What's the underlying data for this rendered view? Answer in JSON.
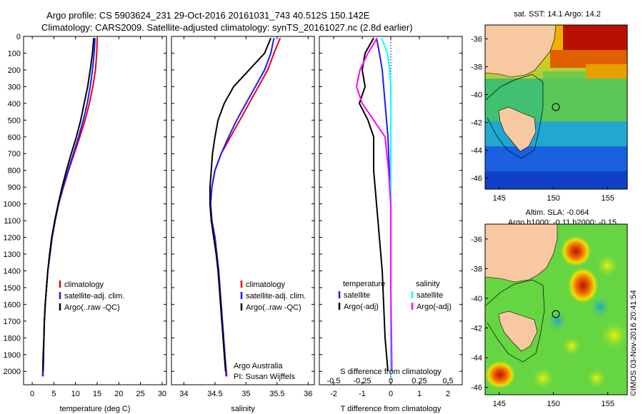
{
  "header": {
    "line1": "Argo profile: CS 5903624_231 29-Oct-2016 20161031_743 40.512S 150.142E",
    "line2": "Climatology: CARS2009. Satellite-adjusted climatology: synTS_20161027.nc (2.8d earlier)"
  },
  "depth_axis": {
    "ticks": [
      0,
      100,
      200,
      300,
      400,
      500,
      600,
      700,
      800,
      900,
      1000,
      1100,
      1200,
      1300,
      1400,
      1500,
      1600,
      1700,
      1800,
      1900,
      2000
    ],
    "ylim": [
      0,
      2080
    ]
  },
  "panels": {
    "temperature": {
      "xlabel": "temperature (deg C)",
      "xticks": [
        0,
        5,
        10,
        15,
        20,
        25,
        30
      ],
      "xlim": [
        -2,
        31
      ],
      "legend": [
        "climatology",
        "satellite-adj. clim.",
        "Argo(..raw -QC)"
      ]
    },
    "salinity": {
      "xlabel": "salinity",
      "xticks": [
        34,
        34.5,
        35,
        35.5,
        36
      ],
      "xlim": [
        33.8,
        36.1
      ],
      "legend": [
        "climatology",
        "satellite-adj. clim.",
        "Argo(..raw -QC)"
      ],
      "note1": "Argo Australia",
      "note2": "PI: Susan Wijffels"
    },
    "difference": {
      "xlabel": "T difference from climatology",
      "slabel": "S difference from climatology",
      "xticks": [
        -2,
        -1,
        0,
        1,
        2
      ],
      "sticks": [
        "-0.5",
        "-0.25",
        "0",
        "0.25",
        "0.5"
      ],
      "temp_header": "temperature",
      "sal_header": "salinity",
      "temp_items": [
        "satellite",
        "Argo(-adj)"
      ],
      "sal_items": [
        "satellite",
        "Argo(-adj)"
      ]
    }
  },
  "maps": {
    "sst_title": "sat. SST: 14.1 Argo: 14.2",
    "sla_title1": "Altim. SLA: -0.064",
    "sla_title2": "Argo h1000: -0.11 h2000: -0.15",
    "lon_ticks": [
      145,
      150,
      155
    ],
    "lat_ticks": [
      -36,
      -38,
      -40,
      -42,
      -44,
      -46
    ],
    "profile_location": {
      "lon": 150.142,
      "lat": -40.512
    }
  },
  "credit": "©IMOS 03-Nov-2016 20:41:54",
  "colors": {
    "climatology": "#e8001a",
    "satellite": "#1a1aff",
    "argo": "#000000",
    "sat_salinity": "#00ffff",
    "argo_salinity": "#ff00ff",
    "land": "#f8c8a0"
  },
  "chart_data": [
    {
      "type": "line",
      "title": "",
      "xlabel": "temperature (deg C)",
      "ylabel": "",
      "xlim": [
        -2,
        31
      ],
      "ylim": [
        2080,
        0
      ],
      "series": [
        {
          "name": "climatology",
          "x": [
            15.0,
            14.9,
            14.6,
            14.0,
            13.2,
            12.2,
            11.0,
            9.7,
            8.4,
            7.2,
            6.1,
            5.3,
            4.6,
            4.1,
            3.6,
            3.3,
            3.0,
            2.8,
            2.7,
            2.6,
            2.5
          ],
          "y": [
            10,
            100,
            200,
            300,
            400,
            500,
            600,
            700,
            800,
            900,
            1000,
            1100,
            1200,
            1300,
            1400,
            1500,
            1600,
            1700,
            1800,
            1900,
            2030
          ]
        },
        {
          "name": "satellite-adj. clim.",
          "x": [
            14.5,
            14.3,
            13.9,
            13.4,
            12.7,
            11.8,
            10.7,
            9.5,
            8.3,
            7.1,
            6.1,
            5.3,
            4.6,
            4.1,
            3.6,
            3.3,
            3.0,
            2.8,
            2.7,
            2.5,
            2.4
          ],
          "y": [
            10,
            100,
            200,
            300,
            400,
            500,
            600,
            700,
            800,
            900,
            1000,
            1100,
            1200,
            1300,
            1400,
            1500,
            1600,
            1700,
            1800,
            1900,
            2030
          ]
        },
        {
          "name": "Argo(..raw -QC)",
          "x": [
            14.2,
            13.9,
            13.4,
            12.8,
            12.0,
            11.2,
            10.2,
            9.0,
            7.9,
            6.9,
            6.0,
            5.2,
            4.5,
            4.0,
            3.6,
            3.3,
            3.0,
            2.8,
            2.7,
            2.6,
            2.5
          ],
          "y": [
            10,
            100,
            200,
            300,
            400,
            500,
            600,
            700,
            800,
            900,
            1000,
            1100,
            1200,
            1300,
            1400,
            1500,
            1600,
            1700,
            1800,
            1900,
            2000
          ]
        }
      ]
    },
    {
      "type": "line",
      "title": "",
      "xlabel": "salinity",
      "ylabel": "",
      "xlim": [
        33.8,
        36.1
      ],
      "ylim": [
        2080,
        0
      ],
      "series": [
        {
          "name": "climatology",
          "x": [
            35.55,
            35.45,
            35.35,
            35.2,
            35.05,
            34.9,
            34.75,
            34.6,
            34.5,
            34.45,
            34.43,
            34.45,
            34.5,
            34.53,
            34.56,
            34.58,
            34.6,
            34.62,
            34.64,
            34.66,
            34.69
          ],
          "y": [
            10,
            100,
            200,
            300,
            400,
            500,
            600,
            700,
            800,
            900,
            1000,
            1100,
            1200,
            1300,
            1400,
            1500,
            1600,
            1700,
            1800,
            1900,
            2030
          ]
        },
        {
          "name": "satellite-adj. clim.",
          "x": [
            35.45,
            35.4,
            35.3,
            35.15,
            35.0,
            34.85,
            34.72,
            34.6,
            34.5,
            34.45,
            34.43,
            34.45,
            34.5,
            34.53,
            34.56,
            34.58,
            34.6,
            34.62,
            34.64,
            34.66,
            34.68
          ],
          "y": [
            10,
            100,
            200,
            300,
            400,
            500,
            600,
            700,
            800,
            900,
            1000,
            1100,
            1200,
            1300,
            1400,
            1500,
            1600,
            1700,
            1800,
            1900,
            2030
          ]
        },
        {
          "name": "Argo(..raw -QC)",
          "x": [
            35.4,
            35.3,
            35.05,
            34.8,
            34.65,
            34.55,
            34.5,
            34.46,
            34.44,
            34.42,
            34.42,
            34.44,
            34.48,
            34.52,
            34.55,
            34.57,
            34.59,
            34.61,
            34.63,
            34.65,
            34.67
          ],
          "y": [
            10,
            100,
            200,
            300,
            400,
            500,
            600,
            700,
            800,
            900,
            1000,
            1100,
            1200,
            1300,
            1400,
            1500,
            1600,
            1700,
            1800,
            1900,
            2000
          ]
        }
      ]
    },
    {
      "type": "line",
      "title": "",
      "xlabel": "T difference from climatology",
      "ylabel": "",
      "xlim": [
        -2.5,
        2.5
      ],
      "ylim": [
        2080,
        0
      ],
      "series": [
        {
          "name": "satellite",
          "x": [
            -0.5,
            -0.4,
            -0.3,
            -0.25,
            -0.2,
            -0.15,
            -0.1,
            -0.05,
            0,
            0,
            0,
            0
          ],
          "y": [
            10,
            100,
            200,
            300,
            400,
            500,
            600,
            800,
            1000,
            1400,
            1800,
            2030
          ]
        },
        {
          "name": "Argo(-adj)",
          "x": [
            -0.6,
            -0.9,
            -1.0,
            -0.9,
            -1.1,
            -0.8,
            -0.6,
            -0.6,
            -0.5,
            -0.3,
            -0.2,
            -0.1
          ],
          "y": [
            10,
            100,
            200,
            300,
            400,
            500,
            600,
            800,
            1000,
            1400,
            1800,
            2000
          ]
        }
      ]
    },
    {
      "type": "line",
      "title": "",
      "xlabel": "S difference from climatology",
      "ylabel": "",
      "xlim": [
        -0.625,
        0.625
      ],
      "ylim": [
        2080,
        0
      ],
      "series": [
        {
          "name": "satellite",
          "x": [
            -0.08,
            -0.03,
            -0.01,
            0,
            0,
            0,
            0,
            0,
            0,
            0,
            0
          ],
          "y": [
            10,
            100,
            200,
            300,
            400,
            600,
            800,
            1000,
            1400,
            1800,
            2030
          ]
        },
        {
          "name": "Argo(-adj)",
          "x": [
            -0.12,
            -0.2,
            -0.27,
            -0.3,
            -0.25,
            -0.15,
            -0.05,
            -0.02,
            0,
            0,
            0.01
          ],
          "y": [
            10,
            100,
            200,
            300,
            400,
            500,
            600,
            800,
            1000,
            1500,
            2000
          ]
        }
      ]
    }
  ]
}
